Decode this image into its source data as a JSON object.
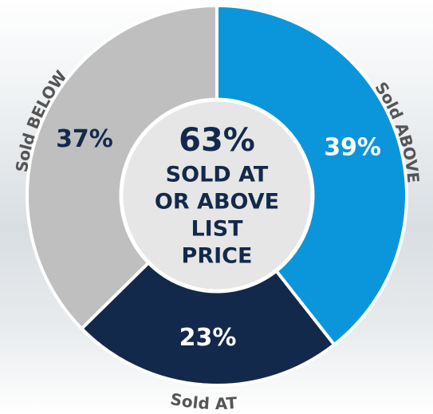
{
  "chart_data": {
    "type": "donut",
    "categories": [
      "Sold ABOVE",
      "Sold AT",
      "Sold BELOW"
    ],
    "values": [
      39,
      23,
      37
    ],
    "value_labels": [
      "39%",
      "23%",
      "37%"
    ],
    "colors": [
      "#0b96db",
      "#13294b",
      "#bfbfbf"
    ],
    "label_colors": [
      "#ffffff",
      "#ffffff",
      "#13294b"
    ],
    "center_title": "63%",
    "center_lines": [
      "SOLD AT",
      "OR ABOVE",
      "LIST",
      "PRICE"
    ]
  }
}
